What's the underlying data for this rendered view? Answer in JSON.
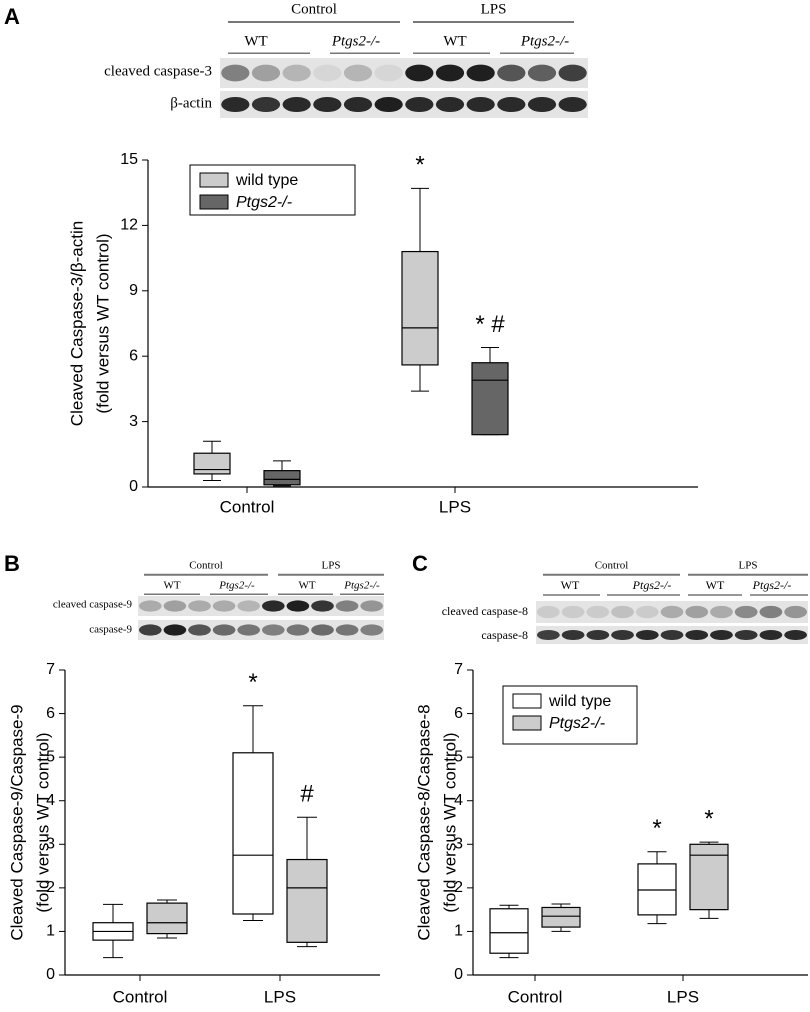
{
  "chart_data": [
    {
      "type": "box",
      "panel": "A",
      "ylabel": [
        "Cleaved Caspase-3/β-actin",
        "(fold versus WT control)"
      ],
      "categories": [
        "Control",
        "LPS"
      ],
      "ylim": [
        0,
        15
      ],
      "yticks": [
        0,
        3,
        6,
        9,
        12,
        15
      ],
      "legend": true,
      "series": [
        {
          "name": "wild type",
          "color": "#cccccc",
          "min": [
            0.3,
            4.4
          ],
          "q1": [
            0.6,
            5.6
          ],
          "median": [
            0.8,
            7.3
          ],
          "q3": [
            1.55,
            10.8
          ],
          "max": [
            2.1,
            13.7
          ],
          "labels": [
            null,
            "*"
          ]
        },
        {
          "name": "Ptgs2-/-",
          "color": "#666666",
          "min": [
            0.05,
            2.4
          ],
          "q1": [
            0.1,
            2.4
          ],
          "median": [
            0.35,
            4.9
          ],
          "q3": [
            0.75,
            5.7
          ],
          "max": [
            1.2,
            6.4
          ],
          "labels": [
            null,
            "* #"
          ]
        }
      ]
    },
    {
      "type": "box",
      "panel": "B",
      "ylabel": [
        "Cleaved Caspase-9/Caspase-9",
        "(fold versus WT control)"
      ],
      "categories": [
        "Control",
        "LPS"
      ],
      "ylim": [
        0,
        7
      ],
      "yticks": [
        0,
        1,
        2,
        3,
        4,
        5,
        6,
        7
      ],
      "legend": false,
      "series": [
        {
          "color": "#ffffff",
          "min": [
            0.4,
            1.25
          ],
          "q1": [
            0.8,
            1.4
          ],
          "median": [
            1.0,
            2.75
          ],
          "q3": [
            1.2,
            5.1
          ],
          "max": [
            1.62,
            6.18
          ],
          "labels": [
            null,
            "*"
          ]
        },
        {
          "color": "#cccccc",
          "min": [
            0.85,
            0.65
          ],
          "q1": [
            0.95,
            0.75
          ],
          "median": [
            1.2,
            2.0
          ],
          "q3": [
            1.65,
            2.65
          ],
          "max": [
            1.72,
            3.62
          ],
          "labels": [
            null,
            "#"
          ]
        }
      ]
    },
    {
      "type": "box",
      "panel": "C",
      "ylabel": [
        "Cleaved Caspase-8/Caspase-8",
        "(fold versus WT control)"
      ],
      "categories": [
        "Control",
        "LPS"
      ],
      "ylim": [
        0,
        7
      ],
      "yticks": [
        0,
        1,
        2,
        3,
        4,
        5,
        6,
        7
      ],
      "legend": true,
      "series": [
        {
          "name": "wild type",
          "color": "#ffffff",
          "min": [
            0.4,
            1.18
          ],
          "q1": [
            0.5,
            1.38
          ],
          "median": [
            0.97,
            1.95
          ],
          "q3": [
            1.52,
            2.55
          ],
          "max": [
            1.6,
            2.83
          ],
          "labels": [
            null,
            "*"
          ]
        },
        {
          "name": "Ptgs2-/-",
          "color": "#cccccc",
          "min": [
            1.0,
            1.3
          ],
          "q1": [
            1.1,
            1.5
          ],
          "median": [
            1.35,
            2.75
          ],
          "q3": [
            1.55,
            3.0
          ],
          "max": [
            1.63,
            3.05
          ],
          "labels": [
            null,
            "*"
          ]
        }
      ]
    }
  ],
  "blots": [
    {
      "groups": [
        "Control",
        "LPS"
      ],
      "genotypes": [
        "WT",
        "Ptgs2-/-",
        "WT",
        "Ptgs2-/-"
      ],
      "rows": [
        "cleaved caspase-3",
        "β-actin"
      ]
    },
    {
      "groups": [
        "Control",
        "LPS"
      ],
      "genotypes": [
        "WT",
        "Ptgs2-/-",
        "WT",
        "Ptgs2-/-"
      ],
      "rows": [
        "cleaved caspase-9",
        "caspase-9"
      ]
    },
    {
      "groups": [
        "Control",
        "LPS"
      ],
      "genotypes": [
        "WT",
        "Ptgs2-/-",
        "WT",
        "Ptgs2-/-"
      ],
      "rows": [
        "cleaved caspase-8",
        "caspase-8"
      ]
    }
  ]
}
